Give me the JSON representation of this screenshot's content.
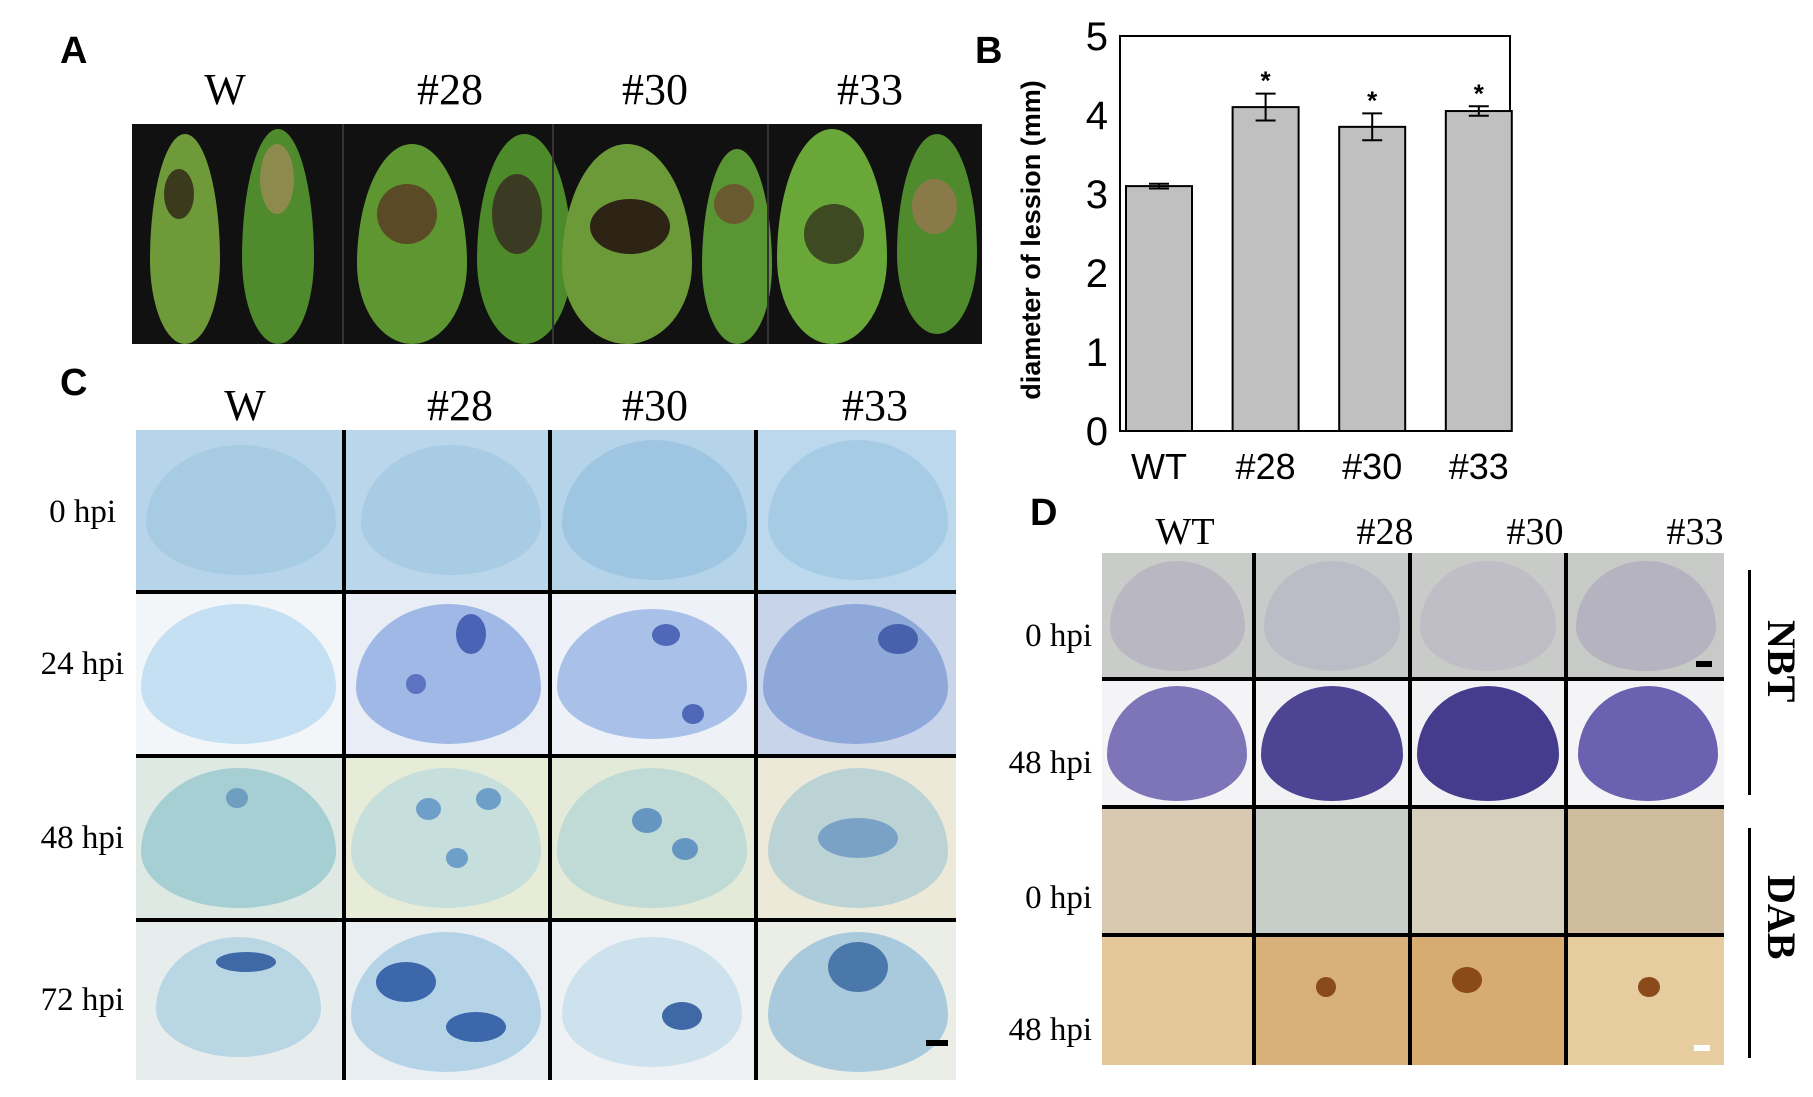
{
  "panelA": {
    "letter": "A",
    "columns": [
      "W",
      "#28",
      "#30",
      "#33"
    ]
  },
  "panelB": {
    "letter": "B"
  },
  "panelC": {
    "letter": "C",
    "columns": [
      "W",
      "#28",
      "#30",
      "#33"
    ],
    "rows": [
      "0 hpi",
      "24 hpi",
      "48 hpi",
      "72 hpi"
    ]
  },
  "panelD": {
    "letter": "D",
    "columns": [
      "WT",
      "#28",
      "#30",
      "#33"
    ],
    "rows": [
      "0 hpi",
      "48 hpi",
      "0 hpi",
      "48 hpi"
    ],
    "stains": [
      "NBT",
      "DAB"
    ]
  },
  "colors": {
    "bar_fill": "#c0c0c0",
    "trypan_light": "#a9cfe6",
    "trypan_dark": "#3f5fae",
    "nbt": "#4a3f9a",
    "dab_bg": "#d8b98a",
    "dab_dot": "#8a4a1a",
    "leaf_green": "#4f8a2c"
  },
  "chart_data": {
    "type": "bar",
    "categories": [
      "WT",
      "#28",
      "#30",
      "#33"
    ],
    "values": [
      3.1,
      4.1,
      3.85,
      4.05
    ],
    "errors": [
      0.03,
      0.17,
      0.17,
      0.06
    ],
    "significance": [
      "",
      "*",
      "*",
      "*"
    ],
    "ylabel": "diameter of lession (mm)",
    "ylim": [
      0,
      5
    ],
    "yticks": [
      0,
      1,
      2,
      3,
      4,
      5
    ],
    "grid": false
  }
}
